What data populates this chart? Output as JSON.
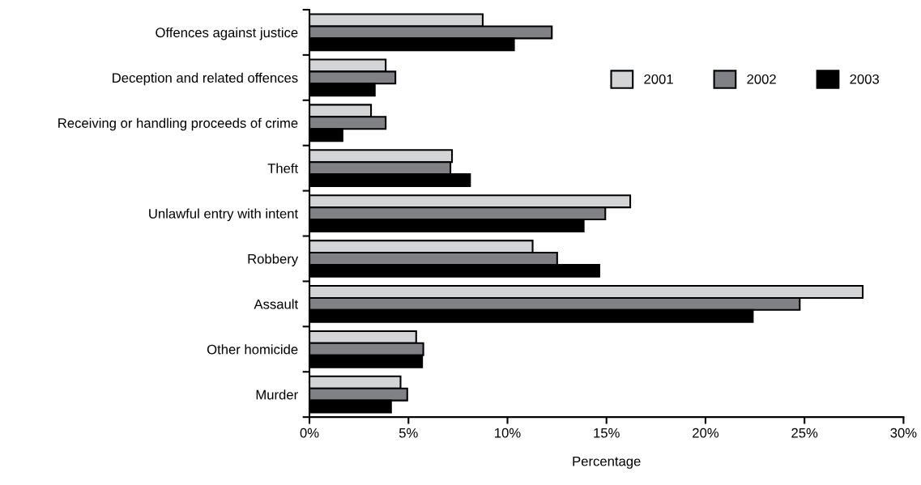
{
  "chart_data": {
    "type": "bar",
    "orientation": "horizontal",
    "xlabel": "Percentage",
    "categories": [
      "Offences against justice",
      "Deception and related offences",
      "Receiving or handling proceeds of crime",
      "Theft",
      "Unlawful entry with intent",
      "Robbery",
      "Assault",
      "Other homicide",
      "Murder"
    ],
    "series": [
      {
        "name": "2001",
        "color": "#d3d4d6",
        "values": [
          8.75,
          3.85,
          3.11,
          7.2,
          16.2,
          11.27,
          27.94,
          5.39,
          4.6
        ]
      },
      {
        "name": "2002",
        "color": "#808184",
        "values": [
          12.24,
          4.34,
          3.85,
          7.12,
          14.94,
          12.51,
          24.76,
          5.75,
          4.94
        ]
      },
      {
        "name": "2003",
        "color": "#000000",
        "values": [
          10.33,
          3.3,
          1.67,
          8.11,
          13.85,
          14.64,
          22.39,
          5.69,
          4.12
        ]
      }
    ],
    "xlim": [
      0,
      30
    ],
    "xticks": [
      {
        "value": 0,
        "label": "0%"
      },
      {
        "value": 5,
        "label": "5%"
      },
      {
        "value": 10,
        "label": "10%"
      },
      {
        "value": 15,
        "label": "15%"
      },
      {
        "value": 20,
        "label": "20%"
      },
      {
        "value": 25,
        "label": "25%"
      },
      {
        "value": 30,
        "label": "30%"
      }
    ],
    "grid": false,
    "legend": "top right"
  }
}
